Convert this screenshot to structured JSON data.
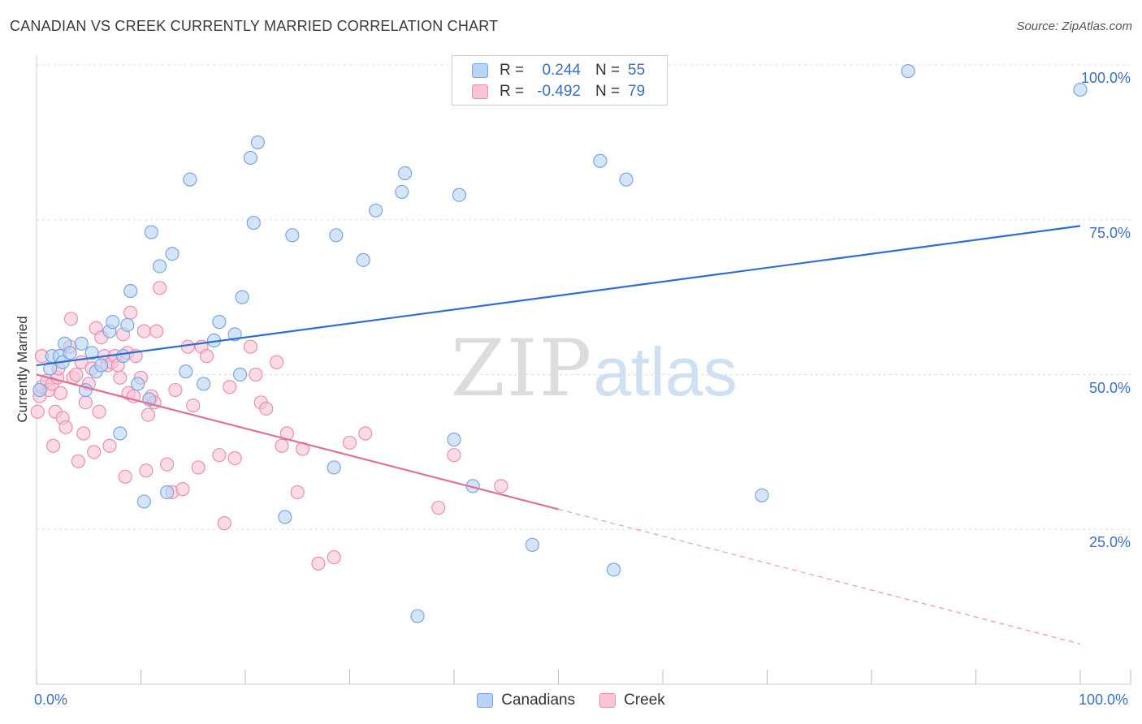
{
  "title": "CANADIAN VS CREEK CURRENTLY MARRIED CORRELATION CHART",
  "source": "Source: ZipAtlas.com",
  "watermark": {
    "zip": "ZIP",
    "atlas": "atlas"
  },
  "colors": {
    "canadians_fill": "#b8d3f5",
    "canadians_stroke": "#7aa6de",
    "canadians_line": "#2e6fcb",
    "creek_fill": "#f9c5d6",
    "creek_stroke": "#ea8fae",
    "creek_line": "#e07099",
    "axis_text": "#3a6fc4",
    "grid": "#dddddd"
  },
  "legend": {
    "rows": [
      {
        "r_label": "R =",
        "r_value": "0.244",
        "n_label": "N =",
        "n_value": "55"
      },
      {
        "r_label": "R =",
        "r_value": "-0.492",
        "n_label": "N =",
        "n_value": "79"
      }
    ]
  },
  "bottom_legend": {
    "canadians": "Canadians",
    "creek": "Creek"
  },
  "chart_data": {
    "type": "scatter",
    "title": "CANADIAN VS CREEK CURRENTLY MARRIED CORRELATION CHART",
    "xlabel": "",
    "ylabel": "Currently Married",
    "xlim": [
      0,
      100
    ],
    "ylim": [
      0,
      100
    ],
    "x_tick_labels": [
      "0.0%",
      "100.0%"
    ],
    "y_ticks": [
      25,
      50,
      75,
      100
    ],
    "y_tick_labels": [
      "25.0%",
      "50.0%",
      "75.0%",
      "100.0%"
    ],
    "grid": true,
    "legend_position": "top-center",
    "series": [
      {
        "name": "Canadians",
        "r": 0.244,
        "n": 55,
        "trend": {
          "x0": 0,
          "y0": 51.5,
          "x1": 100,
          "y1": 74.0,
          "solid_to": 100
        },
        "points": [
          [
            0.3,
            47.5
          ],
          [
            1.3,
            51.0
          ],
          [
            1.5,
            53.0
          ],
          [
            2.2,
            53.0
          ],
          [
            2.5,
            52.0
          ],
          [
            2.7,
            55.0
          ],
          [
            3.2,
            53.5
          ],
          [
            4.3,
            55.0
          ],
          [
            4.7,
            47.5
          ],
          [
            5.3,
            53.5
          ],
          [
            5.7,
            50.5
          ],
          [
            6.2,
            51.5
          ],
          [
            7.0,
            57.0
          ],
          [
            7.3,
            58.5
          ],
          [
            8.0,
            40.5
          ],
          [
            8.3,
            53.0
          ],
          [
            8.7,
            58.0
          ],
          [
            9.0,
            63.5
          ],
          [
            9.7,
            48.5
          ],
          [
            10.3,
            29.5
          ],
          [
            10.8,
            46.0
          ],
          [
            11.0,
            73.0
          ],
          [
            11.8,
            67.5
          ],
          [
            12.5,
            31.0
          ],
          [
            13.0,
            69.5
          ],
          [
            14.3,
            50.5
          ],
          [
            14.7,
            81.5
          ],
          [
            16.0,
            48.5
          ],
          [
            17.0,
            55.5
          ],
          [
            17.5,
            58.5
          ],
          [
            19.0,
            56.5
          ],
          [
            19.5,
            50.0
          ],
          [
            19.7,
            62.5
          ],
          [
            20.5,
            85.0
          ],
          [
            20.8,
            74.5
          ],
          [
            21.2,
            87.5
          ],
          [
            23.8,
            27.0
          ],
          [
            24.5,
            72.5
          ],
          [
            28.5,
            35.0
          ],
          [
            28.7,
            72.5
          ],
          [
            31.3,
            68.5
          ],
          [
            32.5,
            76.5
          ],
          [
            35.0,
            79.5
          ],
          [
            35.3,
            82.5
          ],
          [
            36.5,
            11.0
          ],
          [
            40.0,
            39.5
          ],
          [
            40.5,
            79.0
          ],
          [
            41.8,
            32.0
          ],
          [
            47.5,
            22.5
          ],
          [
            54.0,
            84.5
          ],
          [
            55.3,
            18.5
          ],
          [
            56.5,
            81.5
          ],
          [
            69.5,
            30.5
          ],
          [
            83.5,
            99.0
          ],
          [
            100.0,
            96.0
          ]
        ]
      },
      {
        "name": "Creek",
        "r": -0.492,
        "n": 79,
        "trend": {
          "x0": 0,
          "y0": 50.0,
          "x1": 100,
          "y1": 6.5,
          "solid_to": 50
        },
        "points": [
          [
            0.1,
            44.0
          ],
          [
            0.3,
            46.5
          ],
          [
            0.5,
            48.0
          ],
          [
            1.0,
            49.0
          ],
          [
            1.2,
            47.5
          ],
          [
            1.5,
            48.5
          ],
          [
            1.8,
            44.0
          ],
          [
            2.0,
            49.5
          ],
          [
            2.3,
            47.0
          ],
          [
            2.5,
            43.0
          ],
          [
            2.8,
            41.5
          ],
          [
            3.2,
            54.5
          ],
          [
            3.3,
            59.0
          ],
          [
            3.5,
            49.5
          ],
          [
            3.8,
            50.0
          ],
          [
            4.0,
            36.0
          ],
          [
            4.3,
            52.0
          ],
          [
            4.5,
            40.5
          ],
          [
            4.7,
            45.5
          ],
          [
            5.0,
            48.5
          ],
          [
            5.3,
            51.0
          ],
          [
            5.5,
            37.5
          ],
          [
            5.7,
            57.5
          ],
          [
            6.0,
            44.0
          ],
          [
            6.2,
            56.0
          ],
          [
            6.5,
            53.0
          ],
          [
            6.8,
            51.5
          ],
          [
            7.0,
            38.5
          ],
          [
            7.2,
            52.0
          ],
          [
            7.5,
            53.0
          ],
          [
            7.8,
            51.5
          ],
          [
            8.0,
            49.5
          ],
          [
            8.3,
            56.5
          ],
          [
            8.5,
            33.5
          ],
          [
            8.7,
            53.5
          ],
          [
            8.8,
            47.0
          ],
          [
            9.0,
            60.0
          ],
          [
            9.3,
            46.5
          ],
          [
            9.5,
            53.0
          ],
          [
            10.0,
            49.5
          ],
          [
            10.3,
            57.0
          ],
          [
            10.5,
            34.5
          ],
          [
            10.7,
            43.5
          ],
          [
            11.0,
            46.5
          ],
          [
            11.3,
            45.5
          ],
          [
            11.5,
            57.0
          ],
          [
            11.8,
            64.0
          ],
          [
            12.5,
            35.5
          ],
          [
            13.0,
            31.0
          ],
          [
            13.3,
            47.5
          ],
          [
            14.0,
            31.5
          ],
          [
            14.5,
            54.5
          ],
          [
            15.0,
            45.0
          ],
          [
            15.5,
            35.0
          ],
          [
            15.8,
            54.5
          ],
          [
            16.3,
            53.0
          ],
          [
            17.5,
            37.0
          ],
          [
            18.0,
            26.0
          ],
          [
            18.5,
            48.0
          ],
          [
            19.0,
            36.5
          ],
          [
            20.5,
            54.5
          ],
          [
            21.0,
            50.0
          ],
          [
            21.5,
            45.5
          ],
          [
            22.0,
            44.5
          ],
          [
            23.0,
            52.0
          ],
          [
            23.5,
            38.5
          ],
          [
            24.0,
            40.5
          ],
          [
            25.0,
            31.0
          ],
          [
            25.5,
            38.0
          ],
          [
            27.0,
            19.5
          ],
          [
            28.5,
            20.5
          ],
          [
            30.0,
            39.0
          ],
          [
            31.5,
            40.5
          ],
          [
            38.5,
            28.5
          ],
          [
            40.0,
            37.0
          ],
          [
            44.5,
            32.0
          ],
          [
            0.5,
            53.0
          ],
          [
            1.6,
            38.5
          ],
          [
            2.1,
            51.0
          ]
        ]
      }
    ]
  }
}
